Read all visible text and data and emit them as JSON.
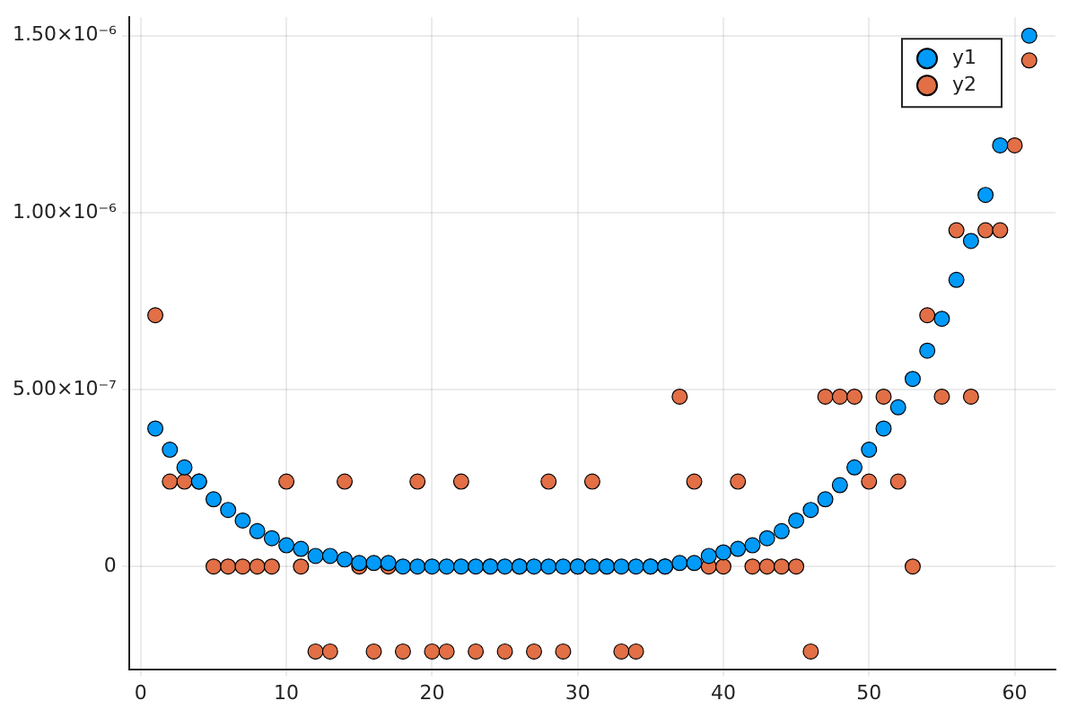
{
  "chart_data": {
    "type": "scatter",
    "x": [
      1,
      2,
      3,
      4,
      5,
      6,
      7,
      8,
      9,
      10,
      11,
      12,
      13,
      14,
      15,
      16,
      17,
      18,
      19,
      20,
      21,
      22,
      23,
      24,
      25,
      26,
      27,
      28,
      29,
      30,
      31,
      32,
      33,
      34,
      35,
      36,
      37,
      38,
      39,
      40,
      41,
      42,
      43,
      44,
      45,
      46,
      47,
      48,
      49,
      50,
      51,
      52,
      53,
      54,
      55,
      56,
      57,
      58,
      59,
      60,
      61
    ],
    "series": [
      {
        "name": "y1",
        "color": "#009af9",
        "values": [
          3.9e-07,
          3.3e-07,
          2.8e-07,
          2.4e-07,
          1.9e-07,
          1.6e-07,
          1.3e-07,
          1e-07,
          8e-08,
          6e-08,
          5e-08,
          3e-08,
          3e-08,
          2e-08,
          1e-08,
          1e-08,
          1e-08,
          0,
          0,
          0,
          0,
          0,
          0,
          0,
          0,
          0,
          0,
          0,
          0,
          0,
          0,
          0,
          0,
          0,
          0,
          0,
          1e-08,
          1e-08,
          3e-08,
          4e-08,
          5e-08,
          6e-08,
          8e-08,
          1e-07,
          1.3e-07,
          1.6e-07,
          1.9e-07,
          2.3e-07,
          2.8e-07,
          3.3e-07,
          3.9e-07,
          4.5e-07,
          5.3e-07,
          6.1e-07,
          7e-07,
          8.1e-07,
          9.2e-07,
          1.05e-06,
          1.19e-06,
          null,
          1.5e-06
        ]
      },
      {
        "name": "y2",
        "color": "#e26f46",
        "values": [
          7.1e-07,
          2.4e-07,
          2.4e-07,
          2.4e-07,
          0,
          0,
          0,
          0,
          0,
          2.4e-07,
          0,
          -2.4e-07,
          -2.4e-07,
          2.4e-07,
          0,
          -2.4e-07,
          0,
          -2.4e-07,
          2.4e-07,
          -2.4e-07,
          -2.4e-07,
          2.4e-07,
          -2.4e-07,
          0,
          -2.4e-07,
          0,
          -2.4e-07,
          2.4e-07,
          -2.4e-07,
          0,
          2.4e-07,
          0,
          -2.4e-07,
          -2.4e-07,
          0,
          0,
          4.8e-07,
          2.4e-07,
          0,
          0,
          2.4e-07,
          0,
          0,
          0,
          0,
          -2.4e-07,
          4.8e-07,
          4.8e-07,
          4.8e-07,
          2.4e-07,
          4.8e-07,
          2.4e-07,
          0,
          7.1e-07,
          4.8e-07,
          9.5e-07,
          4.8e-07,
          9.5e-07,
          9.5e-07,
          1.19e-06,
          1.43e-06
        ]
      }
    ],
    "xlim": [
      -0.8,
      62.8
    ],
    "xticks": [
      0,
      10,
      20,
      30,
      40,
      50,
      60
    ],
    "ylim": [
      -2.9e-07,
      1.552e-06
    ],
    "yticks": [
      0,
      {
        "value": 5e-07,
        "label": "5.00×10⁻⁷"
      },
      {
        "value": 1e-06,
        "label": "1.00×10⁻⁶"
      },
      {
        "value": 1.5e-06,
        "label": "1.50×10⁻⁶"
      }
    ],
    "grid": true,
    "legend": "top right",
    "marker": "circle"
  }
}
